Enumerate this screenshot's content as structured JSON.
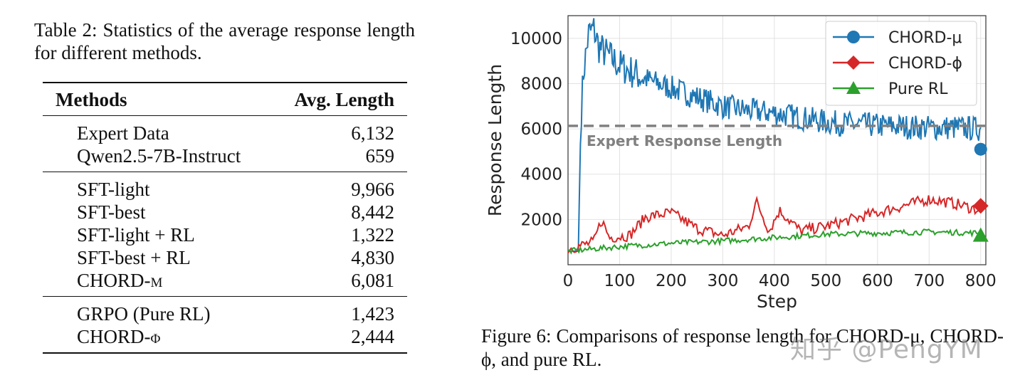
{
  "table": {
    "caption": "Table 2:  Statistics of the average response length for different methods.",
    "headers": {
      "methods": "Methods",
      "avg_length": "Avg. Length"
    },
    "groups": [
      [
        {
          "method": "Expert Data",
          "value": "6,132"
        },
        {
          "method": "Qwen2.5-7B-Instruct",
          "value": "659"
        }
      ],
      [
        {
          "method": "SFT-light",
          "value": "9,966"
        },
        {
          "method": "SFT-best",
          "value": "8,442"
        },
        {
          "method": "SFT-light + RL",
          "value": "1,322"
        },
        {
          "method": "SFT-best + RL",
          "value": "4,830"
        },
        {
          "method": "CHORD-μ",
          "value": "6,081"
        }
      ],
      [
        {
          "method": "GRPO (Pure RL)",
          "value": "1,423"
        },
        {
          "method": "CHORD-ϕ",
          "value": "2,444"
        }
      ]
    ]
  },
  "figure": {
    "caption": "Figure 6:  Comparisons of response length for CHORD-μ, CHORD-ϕ, and pure RL.",
    "watermark": "知乎 @PengYM"
  },
  "chart_data": {
    "type": "line",
    "xlabel": "Step",
    "ylabel": "Response Length",
    "xlim": [
      0,
      810
    ],
    "ylim": [
      0,
      11000
    ],
    "xticks": [
      0,
      100,
      200,
      300,
      400,
      500,
      600,
      700,
      800
    ],
    "yticks": [
      2000,
      4000,
      6000,
      8000,
      10000
    ],
    "grid": true,
    "legend_position": "top-right",
    "reference_line": {
      "label": "Expert Response Length",
      "value": 6132,
      "color": "#808080"
    },
    "series": [
      {
        "name": "CHORD-μ",
        "color": "#1f77b4",
        "marker": "circle",
        "x": [
          0,
          20,
          25,
          30,
          40,
          50,
          60,
          80,
          100,
          150,
          200,
          250,
          300,
          350,
          400,
          450,
          500,
          550,
          600,
          650,
          700,
          750,
          800
        ],
        "values": [
          600,
          600,
          6500,
          8500,
          10200,
          10400,
          9600,
          9200,
          8800,
          8200,
          7800,
          7400,
          7000,
          6800,
          6700,
          6500,
          6300,
          6200,
          6150,
          6100,
          6050,
          6050,
          6000
        ],
        "final_marker": 5100
      },
      {
        "name": "CHORD-ϕ",
        "color": "#d62728",
        "marker": "diamond",
        "x": [
          0,
          50,
          65,
          80,
          120,
          150,
          200,
          250,
          300,
          350,
          365,
          390,
          410,
          450,
          500,
          550,
          600,
          650,
          700,
          750,
          800
        ],
        "values": [
          700,
          1000,
          2000,
          1200,
          1300,
          2100,
          2300,
          1600,
          1300,
          1700,
          2800,
          1500,
          2400,
          1500,
          1700,
          2000,
          2300,
          2600,
          2900,
          2700,
          2400
        ],
        "final_marker": 2600
      },
      {
        "name": "Pure RL",
        "color": "#2ca02c",
        "marker": "triangle",
        "x": [
          0,
          100,
          200,
          300,
          400,
          500,
          600,
          700,
          800
        ],
        "values": [
          600,
          800,
          950,
          1050,
          1200,
          1350,
          1400,
          1450,
          1400
        ],
        "final_marker": 1300
      }
    ]
  }
}
